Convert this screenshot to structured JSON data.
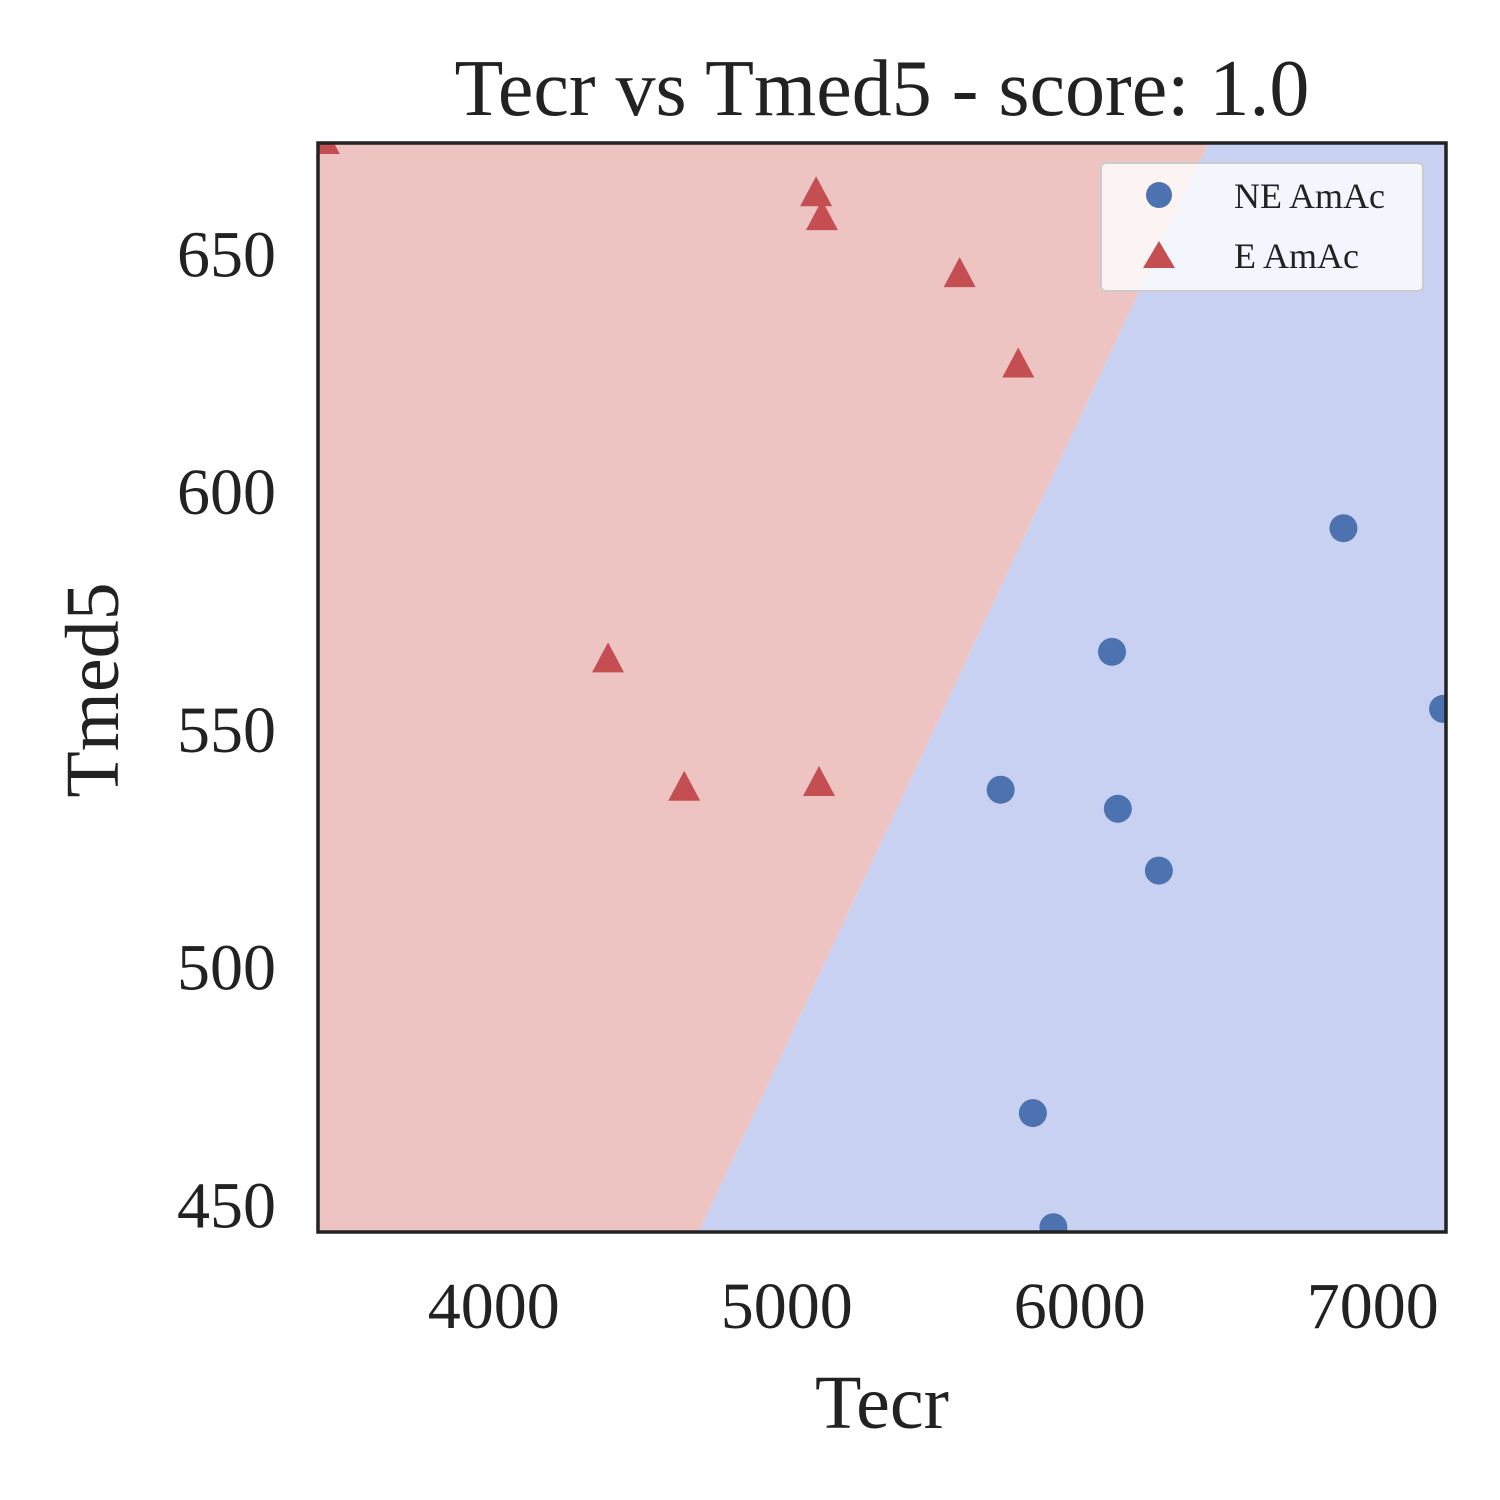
{
  "chart_data": {
    "type": "scatter",
    "title": "Tecr vs Tmed5 - score: 1.0",
    "xlabel": "Tecr",
    "ylabel": "Tmed5",
    "xlim": [
      3400,
      7250
    ],
    "ylim": [
      444,
      673
    ],
    "xticks": [
      4000,
      5000,
      6000,
      7000
    ],
    "yticks": [
      450,
      500,
      550,
      600,
      650
    ],
    "grid": false,
    "legend_position": "top-right",
    "decision_regions": {
      "boundary_line": [
        [
          4700,
          444
        ],
        [
          6440,
          673
        ]
      ],
      "left_region": "E AmAc",
      "right_region": "NE AmAc",
      "colors": {
        "E AmAc": "#eec4c3",
        "NE AmAc": "#c9d1f2"
      }
    },
    "series": [
      {
        "name": "NE AmAc",
        "marker": "circle",
        "color": "#4c72b0",
        "points": [
          [
            6900,
            592
          ],
          [
            6110,
            566
          ],
          [
            7240,
            554
          ],
          [
            5730,
            537
          ],
          [
            6130,
            533
          ],
          [
            6270,
            520
          ],
          [
            5840,
            469
          ],
          [
            5910,
            445
          ]
        ]
      },
      {
        "name": "E AmAc",
        "marker": "triangle",
        "color": "#c44e52",
        "points": [
          [
            3420,
            673
          ],
          [
            5100,
            662
          ],
          [
            5120,
            657
          ],
          [
            5590,
            645
          ],
          [
            5790,
            626
          ],
          [
            4390,
            564
          ],
          [
            4650,
            537
          ],
          [
            5110,
            538
          ]
        ]
      }
    ]
  }
}
